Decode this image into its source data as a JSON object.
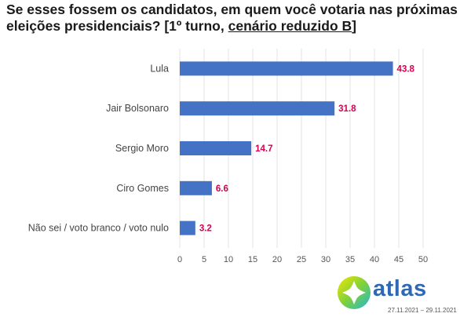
{
  "title": {
    "main": "Se esses fossem os candidatos, em quem você votaria nas próximas eleições presidenciais? [1º turno, ",
    "underlined": "cenário reduzido B",
    "close": "]"
  },
  "brand": "atlas",
  "date_range": "27.11.2021 – 29.11.2021",
  "colors": {
    "bar": "#4472c4",
    "value_label": "#d6004f",
    "brand": "#2f68b3"
  },
  "chart_data": {
    "type": "bar",
    "orientation": "horizontal",
    "categories": [
      "Lula",
      "Jair Bolsonaro",
      "Sergio Moro",
      "Ciro Gomes",
      "Não sei / voto branco / voto nulo"
    ],
    "values": [
      43.8,
      31.8,
      14.7,
      6.6,
      3.2
    ],
    "value_labels": [
      "43.8",
      "31.8",
      "14.7",
      "6.6",
      "3.2"
    ],
    "xlim": [
      0,
      50
    ],
    "xticks": [
      0,
      5,
      10,
      15,
      20,
      25,
      30,
      35,
      40,
      45,
      50
    ],
    "grid": true,
    "legend": "none"
  }
}
